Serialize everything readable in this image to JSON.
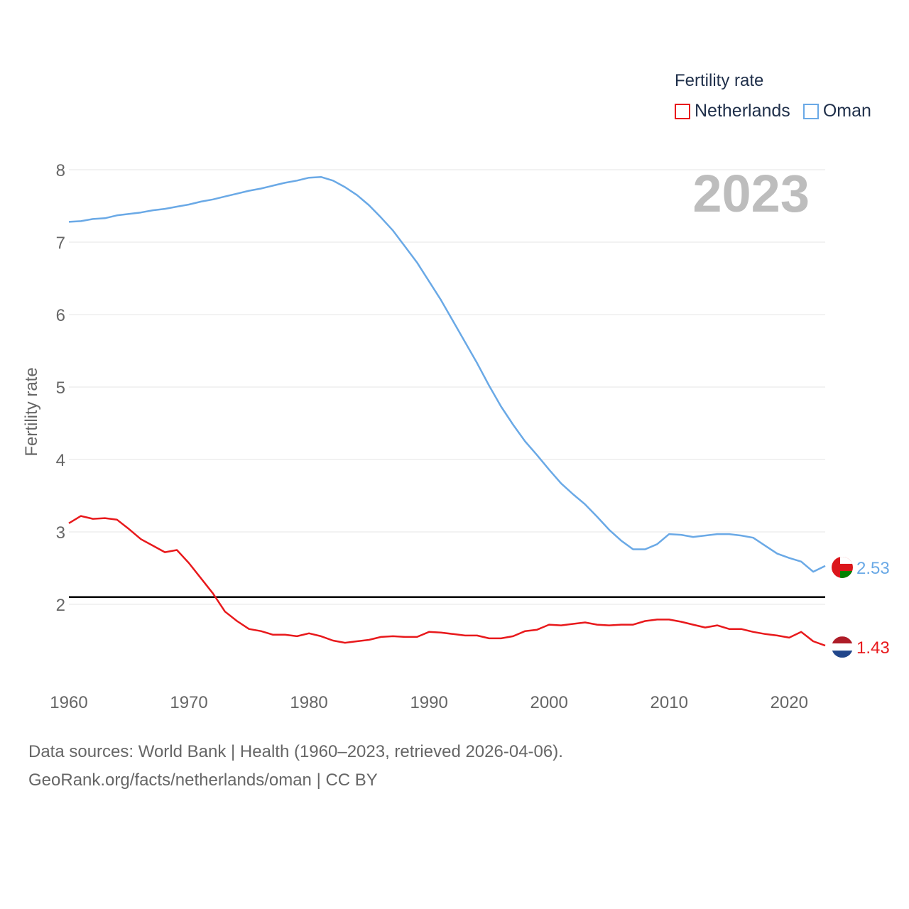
{
  "legend": {
    "title": "Fertility rate",
    "items": [
      {
        "label": "Netherlands",
        "color": "#e8191c"
      },
      {
        "label": "Oman",
        "color": "#6aa9e6"
      }
    ]
  },
  "footer": {
    "line1": "Data sources: World Bank | Health (1960–2023, retrieved 2026-04-06).",
    "line2": "GeoRank.org/facts/netherlands/oman | CC BY"
  },
  "chart_data": {
    "type": "line",
    "title": "Fertility rate",
    "year_label": "2023",
    "xlabel": "",
    "ylabel": "Fertility rate",
    "xlim": [
      1960,
      2023
    ],
    "ylim": [
      1,
      8
    ],
    "x_ticks": [
      1960,
      1970,
      1980,
      1990,
      2000,
      2010,
      2020
    ],
    "y_ticks": [
      2,
      3,
      4,
      5,
      6,
      7,
      8
    ],
    "reference_line": 2.1,
    "x": [
      1960,
      1961,
      1962,
      1963,
      1964,
      1965,
      1966,
      1967,
      1968,
      1969,
      1970,
      1971,
      1972,
      1973,
      1974,
      1975,
      1976,
      1977,
      1978,
      1979,
      1980,
      1981,
      1982,
      1983,
      1984,
      1985,
      1986,
      1987,
      1988,
      1989,
      1990,
      1991,
      1992,
      1993,
      1994,
      1995,
      1996,
      1997,
      1998,
      1999,
      2000,
      2001,
      2002,
      2003,
      2004,
      2005,
      2006,
      2007,
      2008,
      2009,
      2010,
      2011,
      2012,
      2013,
      2014,
      2015,
      2016,
      2017,
      2018,
      2019,
      2020,
      2021,
      2022,
      2023
    ],
    "series": [
      {
        "name": "Netherlands",
        "color": "#e8191c",
        "end_label": "1.43",
        "values": [
          3.12,
          3.22,
          3.18,
          3.19,
          3.17,
          3.04,
          2.9,
          2.81,
          2.72,
          2.75,
          2.57,
          2.36,
          2.15,
          1.9,
          1.77,
          1.66,
          1.63,
          1.58,
          1.58,
          1.56,
          1.6,
          1.56,
          1.5,
          1.47,
          1.49,
          1.51,
          1.55,
          1.56,
          1.55,
          1.55,
          1.62,
          1.61,
          1.59,
          1.57,
          1.57,
          1.53,
          1.53,
          1.56,
          1.63,
          1.65,
          1.72,
          1.71,
          1.73,
          1.75,
          1.72,
          1.71,
          1.72,
          1.72,
          1.77,
          1.79,
          1.79,
          1.76,
          1.72,
          1.68,
          1.71,
          1.66,
          1.66,
          1.62,
          1.59,
          1.57,
          1.54,
          1.62,
          1.49,
          1.43
        ]
      },
      {
        "name": "Oman",
        "color": "#6aa9e6",
        "end_label": "2.53",
        "values": [
          7.28,
          7.29,
          7.32,
          7.33,
          7.37,
          7.39,
          7.41,
          7.44,
          7.46,
          7.49,
          7.52,
          7.56,
          7.59,
          7.63,
          7.67,
          7.71,
          7.74,
          7.78,
          7.82,
          7.85,
          7.89,
          7.9,
          7.85,
          7.76,
          7.65,
          7.51,
          7.34,
          7.16,
          6.94,
          6.72,
          6.46,
          6.2,
          5.91,
          5.62,
          5.33,
          5.02,
          4.73,
          4.48,
          4.25,
          4.06,
          3.86,
          3.67,
          3.52,
          3.38,
          3.21,
          3.03,
          2.88,
          2.76,
          2.76,
          2.83,
          2.97,
          2.96,
          2.93,
          2.95,
          2.97,
          2.97,
          2.95,
          2.92,
          2.81,
          2.7,
          2.64,
          2.59,
          2.45,
          2.53
        ]
      }
    ]
  }
}
